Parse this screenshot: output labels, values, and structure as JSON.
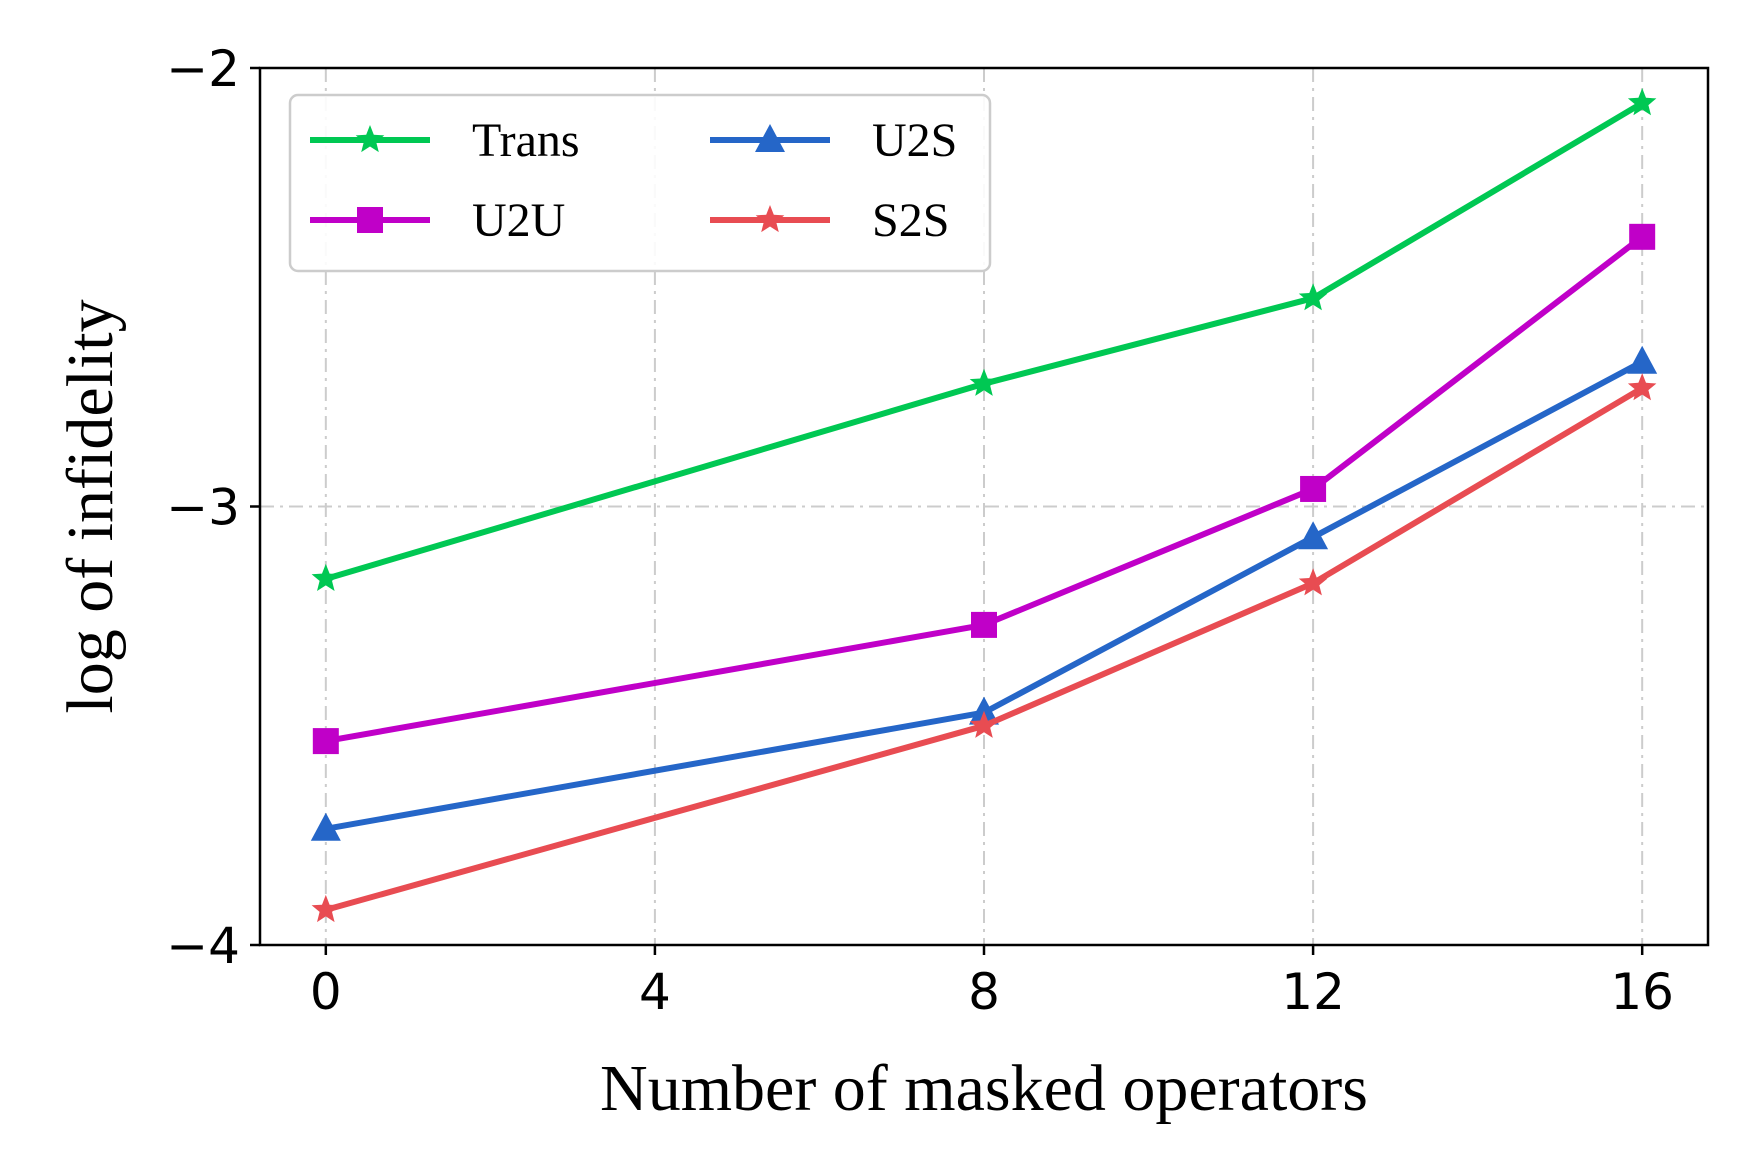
{
  "chart_data": {
    "type": "line",
    "title": "",
    "xlabel": "Number of masked operators",
    "ylabel": "log of infidelity",
    "x": [
      0,
      8,
      12,
      16
    ],
    "xticks": [
      0,
      4,
      8,
      12,
      16
    ],
    "xtick_labels": [
      "0",
      "4",
      "8",
      "12",
      "16"
    ],
    "xlim": [
      -0.8,
      16.8
    ],
    "yticks": [
      -4,
      -3,
      -2
    ],
    "ytick_labels": [
      "−4",
      "−3",
      "−2"
    ],
    "ylim": [
      -4,
      -2
    ],
    "grid": true,
    "legend_position": "top-left",
    "series": [
      {
        "name": "Trans",
        "color": "#00c853",
        "marker": "star",
        "values": [
          -3.165,
          -2.72,
          -2.525,
          -2.08
        ]
      },
      {
        "name": "U2U",
        "color": "#c000c8",
        "marker": "square",
        "values": [
          -3.535,
          -3.27,
          -2.96,
          -2.385
        ]
      },
      {
        "name": "U2S",
        "color": "#2566c8",
        "marker": "triangle",
        "values": [
          -3.735,
          -3.47,
          -3.07,
          -2.67
        ]
      },
      {
        "name": "S2S",
        "color": "#e84c52",
        "marker": "star",
        "values": [
          -3.92,
          -3.5,
          -3.175,
          -2.73
        ]
      }
    ]
  }
}
